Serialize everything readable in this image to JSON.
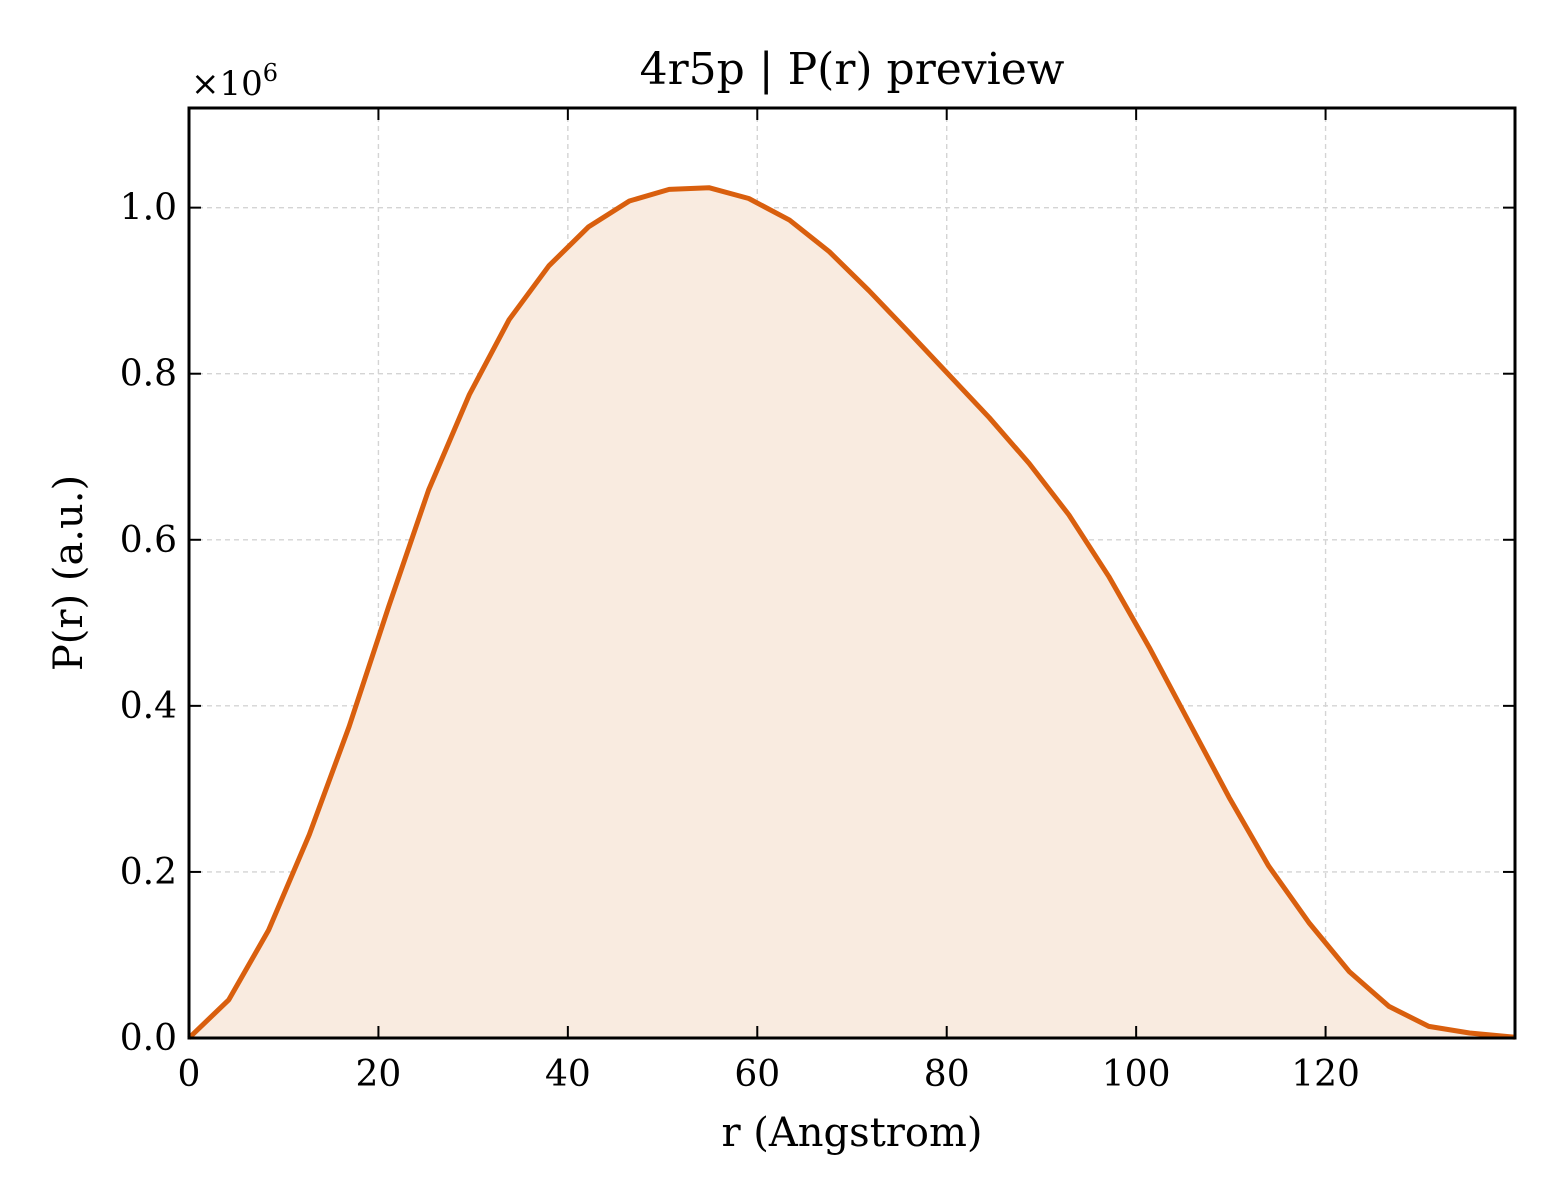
{
  "chart_data": {
    "type": "area",
    "title": "4r5p | P(r) preview",
    "xlabel": "r (Angstrom)",
    "ylabel": "P(r) (a.u.)",
    "y_multiplier_label": "×10",
    "y_multiplier_exponent": "6",
    "xlim": [
      0,
      140
    ],
    "ylim": [
      0,
      1.12
    ],
    "x_ticks": [
      0,
      20,
      40,
      60,
      80,
      100,
      120
    ],
    "x_tick_labels": [
      "0",
      "20",
      "40",
      "60",
      "80",
      "100",
      "120"
    ],
    "y_ticks": [
      0,
      0.2,
      0.4,
      0.6,
      0.8,
      1.0
    ],
    "y_tick_labels": [
      "0.0",
      "0.2",
      "0.4",
      "0.6",
      "0.8",
      "1.0"
    ],
    "grid": true,
    "colors": {
      "line": "#d95f0e",
      "fill": "#f9ebe0"
    },
    "series": [
      {
        "x": [
          0,
          4.2,
          8.4,
          12.7,
          16.9,
          21.1,
          25.3,
          29.6,
          33.8,
          38.0,
          42.2,
          46.5,
          50.7,
          54.9,
          59.1,
          63.4,
          67.6,
          71.8,
          76.0,
          80.2,
          84.5,
          88.7,
          92.9,
          97.1,
          101.4,
          105.6,
          109.8,
          114.0,
          118.3,
          122.5,
          126.7,
          130.9,
          135.2,
          140
        ],
        "y": [
          0.0,
          0.046,
          0.13,
          0.245,
          0.375,
          0.52,
          0.66,
          0.775,
          0.865,
          0.93,
          0.977,
          1.008,
          1.022,
          1.024,
          1.011,
          0.985,
          0.947,
          0.9,
          0.85,
          0.799,
          0.747,
          0.692,
          0.63,
          0.556,
          0.47,
          0.38,
          0.29,
          0.207,
          0.138,
          0.08,
          0.038,
          0.014,
          0.006,
          0.001
        ]
      }
    ]
  }
}
